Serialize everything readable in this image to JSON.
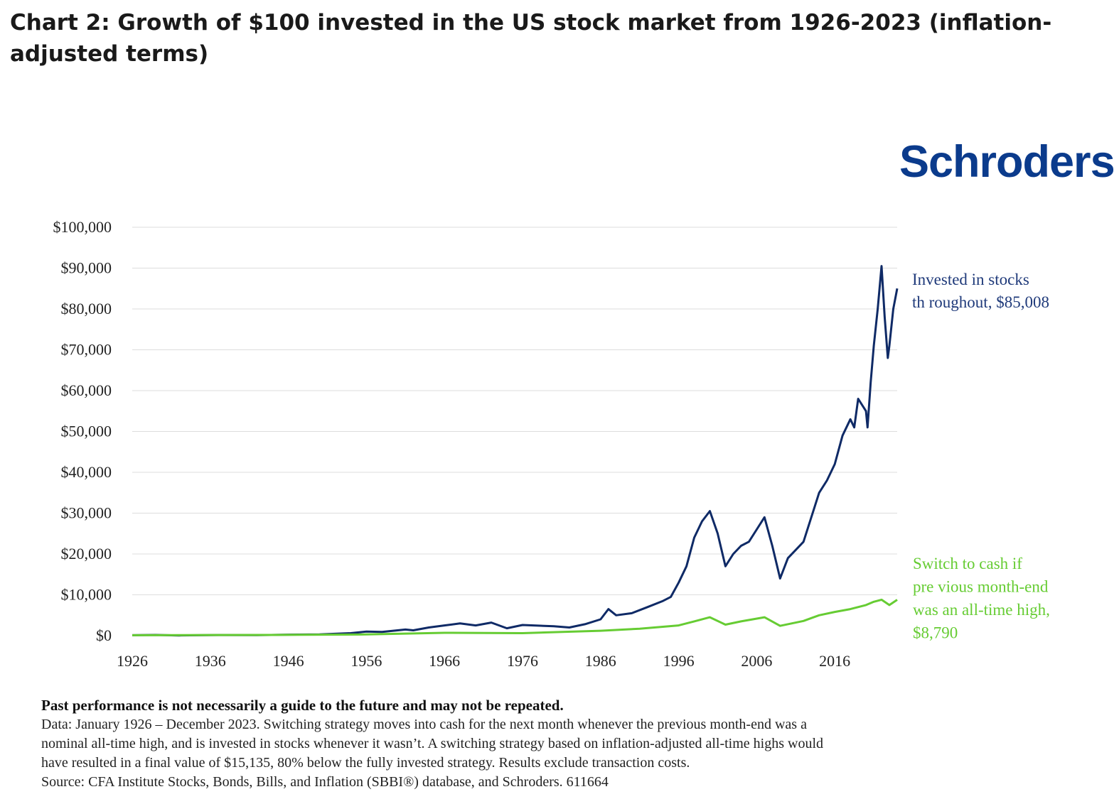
{
  "title": "Chart 2: Growth of $100 invested in the US stock market from 1926-2023 (inflation-adjusted terms)",
  "logo_text": "Schroders",
  "colors": {
    "stocks": "#0f2a66",
    "cash": "#66cc33",
    "logo": "#0b3b8c",
    "grid": "#dddddd"
  },
  "chart_data": {
    "type": "line",
    "xlim": [
      1926,
      2024
    ],
    "ylim": [
      0,
      100000
    ],
    "x_ticks": [
      "1926",
      "1936",
      "1946",
      "1956",
      "1966",
      "1976",
      "1986",
      "1996",
      "2006",
      "2016"
    ],
    "y_ticks": [
      "$0",
      "$10,000",
      "$20,000",
      "$30,000",
      "$40,000",
      "$50,000",
      "$60,000",
      "$70,000",
      "$80,000",
      "$90,000",
      "$100,000"
    ],
    "grid": true,
    "series": [
      {
        "label_lines": [
          "Invested in stocks",
          "th roughout, $85,008"
        ],
        "color": "#0f2a66",
        "points": [
          [
            1926,
            100
          ],
          [
            1929,
            180
          ],
          [
            1932,
            60
          ],
          [
            1937,
            150
          ],
          [
            1942,
            120
          ],
          [
            1946,
            250
          ],
          [
            1950,
            300
          ],
          [
            1954,
            600
          ],
          [
            1956,
            1000
          ],
          [
            1958,
            900
          ],
          [
            1961,
            1500
          ],
          [
            1962,
            1300
          ],
          [
            1964,
            2000
          ],
          [
            1966,
            2500
          ],
          [
            1968,
            3000
          ],
          [
            1970,
            2500
          ],
          [
            1972,
            3200
          ],
          [
            1974,
            1800
          ],
          [
            1976,
            2600
          ],
          [
            1980,
            2300
          ],
          [
            1982,
            2000
          ],
          [
            1984,
            2800
          ],
          [
            1986,
            4000
          ],
          [
            1987,
            6500
          ],
          [
            1988,
            5000
          ],
          [
            1990,
            5500
          ],
          [
            1992,
            7000
          ],
          [
            1994,
            8500
          ],
          [
            1995,
            9500
          ],
          [
            1996,
            13000
          ],
          [
            1997,
            17000
          ],
          [
            1998,
            24000
          ],
          [
            1999,
            28000
          ],
          [
            2000,
            30500
          ],
          [
            2001,
            25000
          ],
          [
            2002,
            17000
          ],
          [
            2003,
            20000
          ],
          [
            2004,
            22000
          ],
          [
            2005,
            23000
          ],
          [
            2006,
            26000
          ],
          [
            2007,
            29000
          ],
          [
            2008,
            22000
          ],
          [
            2009,
            14000
          ],
          [
            2010,
            19000
          ],
          [
            2011,
            21000
          ],
          [
            2012,
            23000
          ],
          [
            2013,
            29000
          ],
          [
            2014,
            35000
          ],
          [
            2015,
            38000
          ],
          [
            2016,
            42000
          ],
          [
            2017,
            49000
          ],
          [
            2018,
            53000
          ],
          [
            2018.5,
            51000
          ],
          [
            2019,
            58000
          ],
          [
            2020,
            55000
          ],
          [
            2020.2,
            51000
          ],
          [
            2020.6,
            62000
          ],
          [
            2021,
            71000
          ],
          [
            2021.5,
            80000
          ],
          [
            2022,
            90500
          ],
          [
            2022.4,
            78000
          ],
          [
            2022.8,
            68000
          ],
          [
            2023,
            71000
          ],
          [
            2023.5,
            80000
          ],
          [
            2024,
            85008
          ]
        ]
      },
      {
        "label_lines": [
          "Switch to cash if",
          "pre vious month-end",
          "was an all-time high,",
          "$8,790"
        ],
        "color": "#66cc33",
        "points": [
          [
            1926,
            100
          ],
          [
            1936,
            150
          ],
          [
            1946,
            200
          ],
          [
            1956,
            300
          ],
          [
            1966,
            700
          ],
          [
            1976,
            600
          ],
          [
            1986,
            1200
          ],
          [
            1991,
            1700
          ],
          [
            1996,
            2500
          ],
          [
            1998,
            3500
          ],
          [
            2000,
            4500
          ],
          [
            2002,
            2700
          ],
          [
            2004,
            3500
          ],
          [
            2007,
            4500
          ],
          [
            2009,
            2400
          ],
          [
            2012,
            3600
          ],
          [
            2014,
            5000
          ],
          [
            2016,
            5800
          ],
          [
            2018,
            6500
          ],
          [
            2020,
            7500
          ],
          [
            2021,
            8300
          ],
          [
            2022,
            8800
          ],
          [
            2023,
            7500
          ],
          [
            2024,
            8790
          ]
        ]
      }
    ]
  },
  "notes": {
    "warning": "Past performance is not necessarily a guide to the future and may not be repeated.",
    "line1": "Data: January 1926 – December 2023. Switching strategy moves into cash for the next month whenever the previous month-end was a",
    "line2": "nominal all-time high, and is invested in stocks whenever it wasn’t. A switching strategy based on inflation-adjusted all-time highs would",
    "line3": "have resulted in a final value of $15,135, 80% below the fully invested strategy. Results exclude transaction costs.",
    "line4": "Source: CFA Institute Stocks, Bonds, Bills, and Inflation (SBBI®) database, and Schroders. 611664"
  }
}
